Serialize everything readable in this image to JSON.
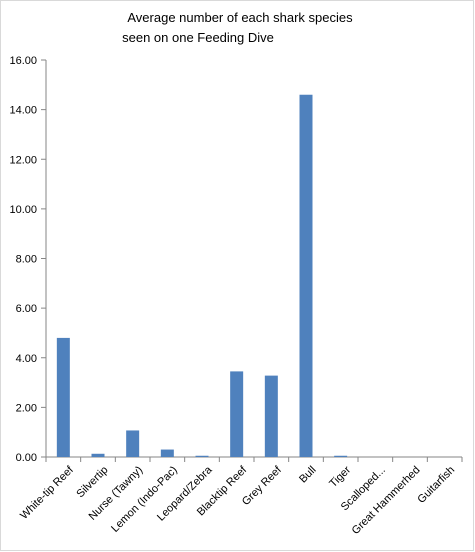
{
  "chart_data": {
    "type": "bar",
    "title_lines": [
      "Average number of  each shark species",
      "seen on one Feeding Dive"
    ],
    "xlabel": "",
    "ylabel": "",
    "categories": [
      "White-tip Reef",
      "Silvertip",
      "Nurse (Tawny)",
      "Lemon (Indo-Pac)",
      "Leopard/Zebra",
      "Blacktip Reef",
      "Grey Reef",
      "Bull",
      "Tiger",
      "Scalloped...",
      "Great Hammerhed",
      "Guitarfish"
    ],
    "values": [
      4.8,
      0.13,
      1.07,
      0.3,
      0.05,
      3.45,
      3.28,
      14.6,
      0.05,
      0,
      0,
      0
    ],
    "ylim": [
      0,
      16
    ],
    "yticks": [
      0,
      2,
      4,
      6,
      8,
      10,
      12,
      14,
      16
    ],
    "ytick_labels": [
      "0.00",
      "2.00",
      "4.00",
      "6.00",
      "8.00",
      "10.00",
      "12.00",
      "14.00",
      "16.00"
    ],
    "grid": false,
    "legend": "none",
    "bar_color": "#4f81bd"
  }
}
